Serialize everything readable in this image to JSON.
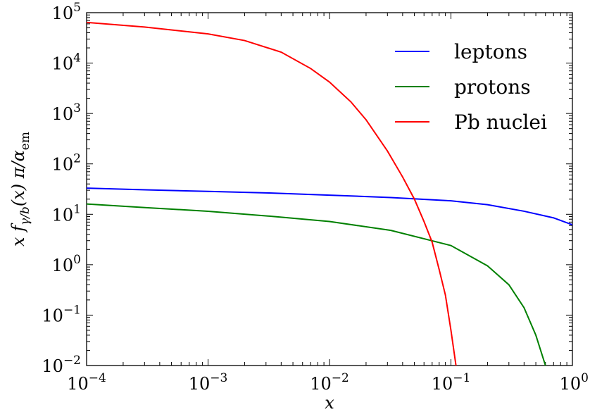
{
  "chart_data": {
    "type": "line",
    "xlabel": "x",
    "ylabel": "x f",
    "ylabel_subscript": "γ/b",
    "ylabel_arg": "(x) π/α",
    "ylabel_arg_subscript": "em",
    "x_scale": "log",
    "y_scale": "log",
    "xlim": [
      0.0001,
      1
    ],
    "ylim": [
      0.01,
      100000
    ],
    "grid": false,
    "legend_position": "top-right",
    "x_ticks": [
      {
        "base": "10",
        "exp": "−4",
        "value": 0.0001
      },
      {
        "base": "10",
        "exp": "−3",
        "value": 0.001
      },
      {
        "base": "10",
        "exp": "−2",
        "value": 0.01
      },
      {
        "base": "10",
        "exp": "−1",
        "value": 0.1
      },
      {
        "base": "10",
        "exp": "0",
        "value": 1
      }
    ],
    "y_ticks": [
      {
        "base": "10",
        "exp": "−2",
        "value": 0.01
      },
      {
        "base": "10",
        "exp": "−1",
        "value": 0.1
      },
      {
        "base": "10",
        "exp": "0",
        "value": 1
      },
      {
        "base": "10",
        "exp": "1",
        "value": 10
      },
      {
        "base": "10",
        "exp": "2",
        "value": 100
      },
      {
        "base": "10",
        "exp": "3",
        "value": 1000
      },
      {
        "base": "10",
        "exp": "4",
        "value": 10000
      },
      {
        "base": "10",
        "exp": "5",
        "value": 100000
      }
    ],
    "series": [
      {
        "name": "leptons",
        "color": "#0000ff",
        "points": [
          [
            0.0001,
            33
          ],
          [
            0.00032,
            30.5
          ],
          [
            0.001,
            28.5
          ],
          [
            0.0032,
            26.5
          ],
          [
            0.01,
            24
          ],
          [
            0.032,
            21.5
          ],
          [
            0.1,
            18.5
          ],
          [
            0.2,
            15.5
          ],
          [
            0.4,
            11.5
          ],
          [
            0.7,
            8.5
          ],
          [
            1,
            6.2
          ]
        ]
      },
      {
        "name": "protons",
        "color": "#008000",
        "points": [
          [
            0.0001,
            16
          ],
          [
            0.00032,
            13.5
          ],
          [
            0.001,
            11.5
          ],
          [
            0.0032,
            9.2
          ],
          [
            0.01,
            7.2
          ],
          [
            0.032,
            4.8
          ],
          [
            0.1,
            2.4
          ],
          [
            0.2,
            0.95
          ],
          [
            0.3,
            0.4
          ],
          [
            0.4,
            0.14
          ],
          [
            0.5,
            0.04
          ],
          [
            0.6,
            0.01
          ]
        ]
      },
      {
        "name": "Pb nuclei",
        "color": "#ff0000",
        "points": [
          [
            0.0001,
            64000
          ],
          [
            0.0003,
            52000
          ],
          [
            0.001,
            38000
          ],
          [
            0.002,
            28000
          ],
          [
            0.004,
            16500
          ],
          [
            0.007,
            7800
          ],
          [
            0.01,
            4200
          ],
          [
            0.015,
            1700
          ],
          [
            0.02,
            750
          ],
          [
            0.03,
            180
          ],
          [
            0.04,
            55
          ],
          [
            0.05,
            20
          ],
          [
            0.06,
            7.2
          ],
          [
            0.07,
            2.8
          ],
          [
            0.08,
            0.8
          ],
          [
            0.09,
            0.25
          ],
          [
            0.1,
            0.05
          ],
          [
            0.11,
            0.01
          ]
        ]
      }
    ]
  }
}
